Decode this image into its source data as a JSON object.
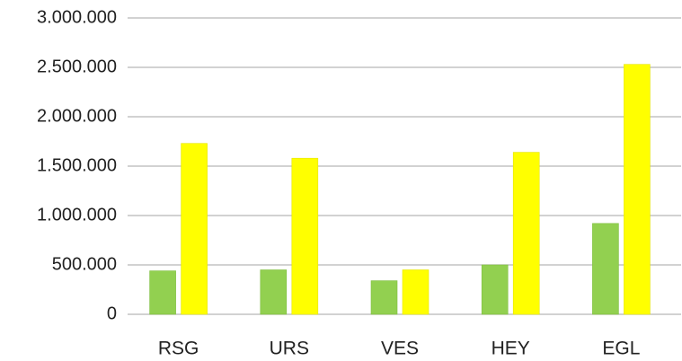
{
  "chart_data": {
    "type": "bar",
    "categories": [
      "RSG",
      "URS",
      "VES",
      "HEY",
      "EGL"
    ],
    "series": [
      {
        "color": "#92d050",
        "values": [
          440000,
          450000,
          340000,
          500000,
          920000
        ]
      },
      {
        "color": "#ffff00",
        "values": [
          1730000,
          1580000,
          450000,
          1640000,
          2530000
        ]
      }
    ],
    "ylim": [
      0,
      3000000
    ],
    "yticks": [
      0,
      {
        "value": 500000,
        "label": "500.000"
      },
      {
        "value": 1000000,
        "label": "1.000.000"
      },
      {
        "value": 1500000,
        "label": "1.500.000"
      },
      {
        "value": 2000000,
        "label": "2.000.000"
      },
      {
        "value": 2500000,
        "label": "2.500.000"
      },
      {
        "value": 3000000,
        "label": "3.000.000"
      }
    ],
    "grid": true
  }
}
